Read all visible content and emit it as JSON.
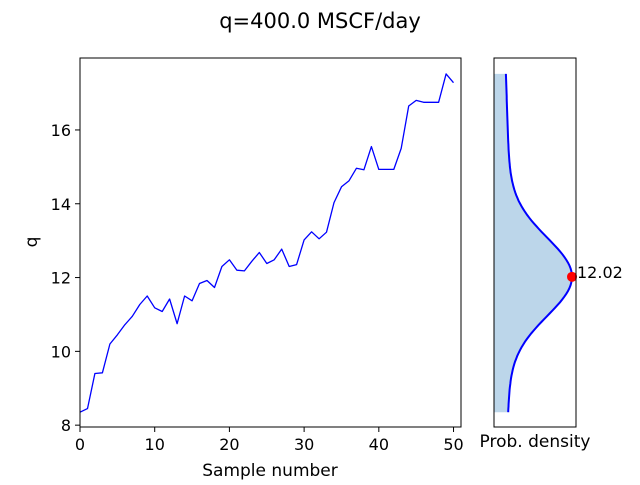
{
  "chart_data": [
    {
      "type": "line",
      "title": "q=400.0 MSCF/day",
      "xlabel": "Sample number",
      "ylabel": "q",
      "xlim": [
        0,
        51
      ],
      "ylim": [
        7.95,
        17.95
      ],
      "xticks": [
        0,
        10,
        20,
        30,
        40,
        50
      ],
      "yticks": [
        8,
        10,
        12,
        14,
        16
      ],
      "color": "#0000ff",
      "series": [
        {
          "name": "q",
          "x": [
            0,
            1,
            2,
            3,
            4,
            5,
            6,
            7,
            8,
            9,
            10,
            11,
            12,
            13,
            14,
            15,
            16,
            17,
            18,
            19,
            20,
            21,
            22,
            23,
            24,
            25,
            26,
            27,
            28,
            29,
            30,
            31,
            32,
            33,
            34,
            35,
            36,
            37,
            38,
            39,
            40,
            41,
            42,
            43,
            44,
            45,
            46,
            47,
            48,
            49,
            50
          ],
          "values": [
            8.35,
            8.45,
            9.4,
            9.42,
            10.2,
            10.45,
            10.72,
            10.95,
            11.27,
            11.5,
            11.18,
            11.08,
            11.42,
            10.75,
            11.5,
            11.37,
            11.84,
            11.92,
            11.73,
            12.3,
            12.48,
            12.2,
            12.18,
            12.44,
            12.68,
            12.38,
            12.48,
            12.77,
            12.3,
            12.35,
            13.02,
            13.24,
            13.05,
            13.23,
            14.03,
            14.46,
            14.62,
            14.96,
            14.92,
            15.55,
            14.93,
            14.93,
            14.93,
            15.5,
            16.65,
            16.8,
            16.75,
            16.75,
            16.75,
            17.52,
            17.28
          ]
        }
      ]
    },
    {
      "type": "area",
      "xlabel": "Prob. density",
      "ylim": [
        7.95,
        17.95
      ],
      "line_color": "#0000ff",
      "fill_color": "#bcd6ea",
      "y_range": [
        8.35,
        17.52
      ],
      "density_curve": {
        "mean": 12.02,
        "sigma": 1.05,
        "tail": 0.14
      },
      "marker": {
        "value": 12.02,
        "label": "12.02",
        "color": "#ff0000"
      }
    }
  ]
}
